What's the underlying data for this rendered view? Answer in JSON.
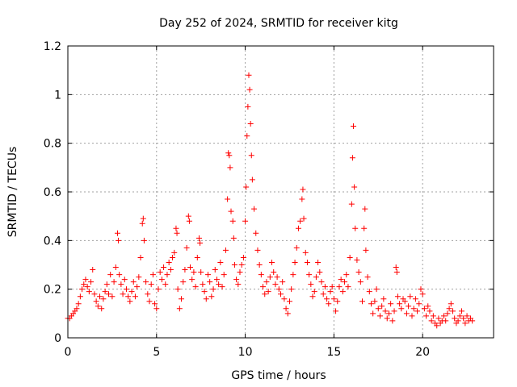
{
  "chart_data": {
    "type": "scatter",
    "title": "Day 252 of 2024, SRMTID for receiver kitg",
    "xlabel": "GPS time / hours",
    "ylabel": "SRMTID / TECUs",
    "xlim": [
      0,
      24
    ],
    "ylim": [
      0,
      1.2
    ],
    "grid": true,
    "marker": "+",
    "marker_color": "#ff0000",
    "x_ticks": [
      0,
      5,
      10,
      15,
      20
    ],
    "x_tick_labels": [
      "0",
      "5",
      "10",
      "15",
      "20"
    ],
    "y_ticks": [
      0,
      0.2,
      0.4,
      0.6,
      0.8,
      1.0,
      1.2
    ],
    "y_tick_labels": [
      "0",
      "0.2",
      "0.4",
      "0.6",
      "0.8",
      "1",
      "1.2"
    ],
    "series": [
      {
        "name": "SRMTID",
        "points": [
          [
            0.0,
            0.08
          ],
          [
            0.1,
            0.08
          ],
          [
            0.2,
            0.09
          ],
          [
            0.3,
            0.1
          ],
          [
            0.4,
            0.11
          ],
          [
            0.5,
            0.12
          ],
          [
            0.6,
            0.14
          ],
          [
            0.7,
            0.17
          ],
          [
            0.8,
            0.2
          ],
          [
            0.9,
            0.22
          ],
          [
            1.0,
            0.24
          ],
          [
            1.1,
            0.21
          ],
          [
            1.2,
            0.19
          ],
          [
            1.3,
            0.23
          ],
          [
            1.4,
            0.28
          ],
          [
            1.5,
            0.18
          ],
          [
            1.6,
            0.15
          ],
          [
            1.7,
            0.13
          ],
          [
            1.8,
            0.17
          ],
          [
            1.9,
            0.12
          ],
          [
            2.0,
            0.16
          ],
          [
            2.1,
            0.19
          ],
          [
            2.2,
            0.22
          ],
          [
            2.3,
            0.18
          ],
          [
            2.4,
            0.26
          ],
          [
            2.5,
            0.17
          ],
          [
            2.6,
            0.23
          ],
          [
            2.7,
            0.29
          ],
          [
            2.8,
            0.43
          ],
          [
            2.85,
            0.4
          ],
          [
            2.9,
            0.26
          ],
          [
            3.0,
            0.22
          ],
          [
            3.1,
            0.18
          ],
          [
            3.2,
            0.24
          ],
          [
            3.3,
            0.2
          ],
          [
            3.4,
            0.17
          ],
          [
            3.5,
            0.15
          ],
          [
            3.6,
            0.19
          ],
          [
            3.7,
            0.23
          ],
          [
            3.8,
            0.17
          ],
          [
            3.9,
            0.21
          ],
          [
            4.0,
            0.25
          ],
          [
            4.1,
            0.33
          ],
          [
            4.2,
            0.47
          ],
          [
            4.25,
            0.49
          ],
          [
            4.3,
            0.4
          ],
          [
            4.4,
            0.23
          ],
          [
            4.5,
            0.18
          ],
          [
            4.6,
            0.15
          ],
          [
            4.7,
            0.22
          ],
          [
            4.8,
            0.26
          ],
          [
            4.9,
            0.14
          ],
          [
            5.0,
            0.12
          ],
          [
            5.1,
            0.2
          ],
          [
            5.2,
            0.27
          ],
          [
            5.3,
            0.24
          ],
          [
            5.4,
            0.29
          ],
          [
            5.5,
            0.22
          ],
          [
            5.6,
            0.26
          ],
          [
            5.7,
            0.31
          ],
          [
            5.8,
            0.28
          ],
          [
            5.9,
            0.33
          ],
          [
            6.0,
            0.35
          ],
          [
            6.1,
            0.45
          ],
          [
            6.15,
            0.43
          ],
          [
            6.2,
            0.2
          ],
          [
            6.3,
            0.12
          ],
          [
            6.4,
            0.16
          ],
          [
            6.5,
            0.23
          ],
          [
            6.6,
            0.28
          ],
          [
            6.7,
            0.37
          ],
          [
            6.8,
            0.5
          ],
          [
            6.85,
            0.48
          ],
          [
            6.9,
            0.29
          ],
          [
            7.0,
            0.24
          ],
          [
            7.1,
            0.27
          ],
          [
            7.2,
            0.21
          ],
          [
            7.3,
            0.33
          ],
          [
            7.4,
            0.41
          ],
          [
            7.45,
            0.39
          ],
          [
            7.5,
            0.27
          ],
          [
            7.6,
            0.22
          ],
          [
            7.7,
            0.19
          ],
          [
            7.8,
            0.16
          ],
          [
            7.9,
            0.26
          ],
          [
            8.0,
            0.23
          ],
          [
            8.1,
            0.17
          ],
          [
            8.2,
            0.2
          ],
          [
            8.3,
            0.28
          ],
          [
            8.4,
            0.24
          ],
          [
            8.5,
            0.22
          ],
          [
            8.6,
            0.31
          ],
          [
            8.7,
            0.21
          ],
          [
            8.8,
            0.26
          ],
          [
            8.9,
            0.36
          ],
          [
            9.0,
            0.57
          ],
          [
            9.05,
            0.76
          ],
          [
            9.1,
            0.75
          ],
          [
            9.15,
            0.7
          ],
          [
            9.2,
            0.52
          ],
          [
            9.3,
            0.48
          ],
          [
            9.35,
            0.41
          ],
          [
            9.4,
            0.3
          ],
          [
            9.5,
            0.24
          ],
          [
            9.6,
            0.22
          ],
          [
            9.7,
            0.27
          ],
          [
            9.8,
            0.3
          ],
          [
            9.9,
            0.33
          ],
          [
            10.0,
            0.48
          ],
          [
            10.05,
            0.62
          ],
          [
            10.1,
            0.83
          ],
          [
            10.15,
            0.95
          ],
          [
            10.2,
            1.08
          ],
          [
            10.25,
            1.02
          ],
          [
            10.3,
            0.88
          ],
          [
            10.35,
            0.75
          ],
          [
            10.4,
            0.65
          ],
          [
            10.5,
            0.53
          ],
          [
            10.6,
            0.43
          ],
          [
            10.7,
            0.36
          ],
          [
            10.8,
            0.3
          ],
          [
            10.9,
            0.26
          ],
          [
            11.0,
            0.21
          ],
          [
            11.1,
            0.18
          ],
          [
            11.2,
            0.23
          ],
          [
            11.3,
            0.19
          ],
          [
            11.4,
            0.25
          ],
          [
            11.5,
            0.31
          ],
          [
            11.6,
            0.27
          ],
          [
            11.7,
            0.22
          ],
          [
            11.8,
            0.25
          ],
          [
            11.9,
            0.2
          ],
          [
            12.0,
            0.18
          ],
          [
            12.1,
            0.23
          ],
          [
            12.2,
            0.16
          ],
          [
            12.3,
            0.12
          ],
          [
            12.4,
            0.1
          ],
          [
            12.5,
            0.15
          ],
          [
            12.6,
            0.2
          ],
          [
            12.7,
            0.26
          ],
          [
            12.8,
            0.31
          ],
          [
            12.9,
            0.37
          ],
          [
            13.0,
            0.45
          ],
          [
            13.1,
            0.48
          ],
          [
            13.2,
            0.57
          ],
          [
            13.25,
            0.61
          ],
          [
            13.3,
            0.49
          ],
          [
            13.4,
            0.35
          ],
          [
            13.5,
            0.31
          ],
          [
            13.6,
            0.26
          ],
          [
            13.7,
            0.22
          ],
          [
            13.8,
            0.17
          ],
          [
            13.9,
            0.19
          ],
          [
            14.0,
            0.25
          ],
          [
            14.1,
            0.31
          ],
          [
            14.2,
            0.27
          ],
          [
            14.3,
            0.23
          ],
          [
            14.4,
            0.18
          ],
          [
            14.5,
            0.21
          ],
          [
            14.6,
            0.16
          ],
          [
            14.7,
            0.14
          ],
          [
            14.8,
            0.19
          ],
          [
            14.9,
            0.21
          ],
          [
            15.0,
            0.16
          ],
          [
            15.1,
            0.11
          ],
          [
            15.2,
            0.15
          ],
          [
            15.3,
            0.21
          ],
          [
            15.4,
            0.24
          ],
          [
            15.5,
            0.19
          ],
          [
            15.6,
            0.23
          ],
          [
            15.7,
            0.26
          ],
          [
            15.8,
            0.21
          ],
          [
            15.9,
            0.33
          ],
          [
            16.0,
            0.55
          ],
          [
            16.05,
            0.74
          ],
          [
            16.1,
            0.87
          ],
          [
            16.15,
            0.62
          ],
          [
            16.2,
            0.45
          ],
          [
            16.3,
            0.32
          ],
          [
            16.4,
            0.27
          ],
          [
            16.5,
            0.23
          ],
          [
            16.6,
            0.15
          ],
          [
            16.7,
            0.45
          ],
          [
            16.75,
            0.53
          ],
          [
            16.8,
            0.36
          ],
          [
            16.9,
            0.25
          ],
          [
            17.0,
            0.19
          ],
          [
            17.1,
            0.14
          ],
          [
            17.2,
            0.1
          ],
          [
            17.3,
            0.15
          ],
          [
            17.4,
            0.2
          ],
          [
            17.5,
            0.12
          ],
          [
            17.6,
            0.09
          ],
          [
            17.7,
            0.13
          ],
          [
            17.8,
            0.16
          ],
          [
            17.9,
            0.11
          ],
          [
            18.0,
            0.08
          ],
          [
            18.1,
            0.1
          ],
          [
            18.2,
            0.14
          ],
          [
            18.3,
            0.07
          ],
          [
            18.4,
            0.11
          ],
          [
            18.5,
            0.29
          ],
          [
            18.55,
            0.27
          ],
          [
            18.6,
            0.17
          ],
          [
            18.7,
            0.14
          ],
          [
            18.8,
            0.12
          ],
          [
            18.9,
            0.16
          ],
          [
            19.0,
            0.15
          ],
          [
            19.1,
            0.1
          ],
          [
            19.2,
            0.13
          ],
          [
            19.3,
            0.17
          ],
          [
            19.4,
            0.09
          ],
          [
            19.5,
            0.12
          ],
          [
            19.6,
            0.16
          ],
          [
            19.7,
            0.11
          ],
          [
            19.8,
            0.14
          ],
          [
            19.9,
            0.2
          ],
          [
            20.0,
            0.18
          ],
          [
            20.1,
            0.12
          ],
          [
            20.2,
            0.09
          ],
          [
            20.3,
            0.13
          ],
          [
            20.4,
            0.11
          ],
          [
            20.5,
            0.07
          ],
          [
            20.6,
            0.09
          ],
          [
            20.7,
            0.06
          ],
          [
            20.8,
            0.05
          ],
          [
            20.9,
            0.08
          ],
          [
            21.0,
            0.06
          ],
          [
            21.1,
            0.07
          ],
          [
            21.2,
            0.09
          ],
          [
            21.3,
            0.07
          ],
          [
            21.4,
            0.1
          ],
          [
            21.5,
            0.12
          ],
          [
            21.6,
            0.14
          ],
          [
            21.7,
            0.11
          ],
          [
            21.8,
            0.08
          ],
          [
            21.9,
            0.06
          ],
          [
            22.0,
            0.07
          ],
          [
            22.1,
            0.09
          ],
          [
            22.2,
            0.11
          ],
          [
            22.3,
            0.08
          ],
          [
            22.4,
            0.06
          ],
          [
            22.5,
            0.09
          ],
          [
            22.6,
            0.07
          ],
          [
            22.7,
            0.08
          ],
          [
            22.8,
            0.07
          ]
        ]
      }
    ]
  }
}
